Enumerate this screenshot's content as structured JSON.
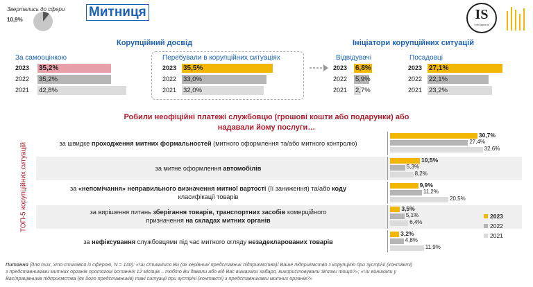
{
  "header": {
    "applied_label": "Звертались до сфери",
    "applied_value": "10,9%",
    "applied_fraction": 0.109,
    "title": "Митниця",
    "logo_text": "IS",
    "logo_sub": "InfoSapiens"
  },
  "corruption": {
    "title": "Корупційний досвід",
    "self": {
      "label": "За самооцінкою",
      "rows": [
        {
          "year": "2023",
          "value": "35,2%",
          "num": 35.2
        },
        {
          "year": "2022",
          "value": "35,2%",
          "num": 35.2
        },
        {
          "year": "2021",
          "value": "42,8%",
          "num": 42.8
        }
      ]
    },
    "situations": {
      "label": "Перебували в корупційних ситуаціях",
      "rows": [
        {
          "year": "2023",
          "value": "35,5%",
          "num": 35.5
        },
        {
          "year": "2022",
          "value": "33,0%",
          "num": 33.0
        },
        {
          "year": "2021",
          "value": "32,0%",
          "num": 32.0
        }
      ]
    }
  },
  "initiators": {
    "title": "Ініціатори корупційних ситуацій",
    "visitors": {
      "label": "Відвідувачі",
      "rows": [
        {
          "year": "2023",
          "value": "6,8%",
          "num": 6.8
        },
        {
          "year": "2022",
          "value": "5,9%",
          "num": 5.9
        },
        {
          "year": "2021",
          "value": "2,7%",
          "num": 2.7
        }
      ]
    },
    "officials": {
      "label": "Посадовці",
      "rows": [
        {
          "year": "2023",
          "value": "27,1%",
          "num": 27.1
        },
        {
          "year": "2022",
          "value": "22,1%",
          "num": 22.1
        },
        {
          "year": "2021",
          "value": "23,2%",
          "num": 23.2
        }
      ]
    }
  },
  "top5": {
    "question_line1": "Робили неофіційні платежі службовцю (грошові кошти або подарунки) або",
    "question_line2": "надавали йому послуги…",
    "side_label": "ТОП-5 корупційних ситуацій",
    "items": [
      {
        "l1_pre": "за швидке ",
        "l1_b": "проходження митних формальностей",
        "l1_post": " (митного оформлення та/або митного контролю)",
        "l2_pre": "",
        "l2_b": "",
        "l2_post": "",
        "v2023": "30,7%",
        "v2022": "27,4%",
        "v2021": "32,6%",
        "n2023": 30.7,
        "n2022": 27.4,
        "n2021": 32.6
      },
      {
        "l1_pre": "за митне оформлення ",
        "l1_b": "автомобілів",
        "l1_post": "",
        "l2_pre": "",
        "l2_b": "",
        "l2_post": "",
        "v2023": "10,5%",
        "v2022": "5,3%",
        "v2021": "8,2%",
        "n2023": 10.5,
        "n2022": 5.3,
        "n2021": 8.2
      },
      {
        "l1_pre": "за ",
        "l1_b": "«непомічання» неправильного визначення митної вартості",
        "l1_post": " (її заниження) та/або ",
        "l1_b2": "коду",
        "l2_pre": "класифікації товарів",
        "l2_b": "",
        "l2_post": "",
        "v2023": "9,9%",
        "v2022": "11,2%",
        "v2021": "20,5%",
        "n2023": 9.9,
        "n2022": 11.2,
        "n2021": 20.5
      },
      {
        "l1_pre": "за вирішення питань ",
        "l1_b": "зберігання товарів, транспортних засобів",
        "l1_post": " комерційного",
        "l2_pre": "призначення ",
        "l2_b": "на складах митних органів",
        "l2_post": "",
        "v2023": "3,5%",
        "v2022": "5,1%",
        "v2021": "6,4%",
        "n2023": 3.5,
        "n2022": 5.1,
        "n2021": 6.4
      },
      {
        "l1_pre": "за ",
        "l1_b": "нефіксування",
        "l1_post": " службовцями під час митного огляду ",
        "l1_b2": "незадекларованих товарів",
        "l2_pre": "",
        "l2_b": "",
        "l2_post": "",
        "v2023": "3,2%",
        "v2022": "4,8%",
        "v2021": "11,9%",
        "n2023": 3.2,
        "n2022": 4.8,
        "n2021": 11.9
      }
    ],
    "legend": [
      {
        "label": "2023",
        "color": "#f2b705"
      },
      {
        "label": "2022",
        "color": "#b5b5b5"
      },
      {
        "label": "2021",
        "color": "#dcdcdc"
      }
    ]
  },
  "footnote": {
    "bold": "Питання",
    "line1": " (для тих, хто стикався із сферою, N = 140): «Чи стикалися Ви (як керівник/ представник підприємства)/ Ваше підприємство з корупцією при зустрічі (контакті)",
    "line2": "з представниками митних органів протягом останніх 12 місяців – тобто Ви давали або від Вас вимагали хабаря, використовували зв'язки тощо?»; «Чи виникали у",
    "line3": "Вас/працівників підприємства (як його представників) такі ситуації при зустрічі (контакті) з представниками митних органів?»"
  }
}
